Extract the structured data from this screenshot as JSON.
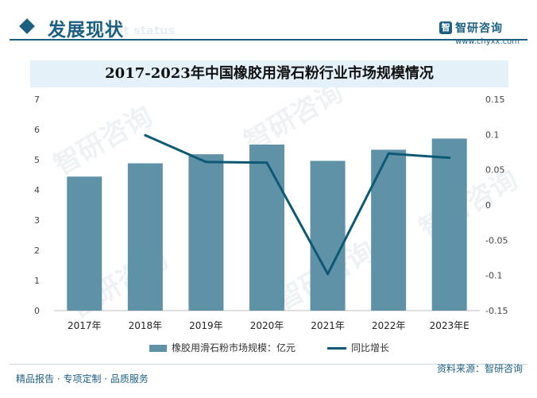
{
  "header": {
    "section_title": "发展现状",
    "section_subtitle": "ment status",
    "logo_mark": "智",
    "logo_name": "智研咨询",
    "logo_url": "www.chyxx.com"
  },
  "watermark_text": "智研咨询",
  "chart_data": {
    "type": "bar",
    "title": "2017-2023年中国橡胶用滑石粉行业市场规模情况",
    "categories": [
      "2017年",
      "2018年",
      "2019年",
      "2020年",
      "2021年",
      "2022年",
      "2023年E"
    ],
    "series": [
      {
        "name": "橡胶用滑石粉市场规模：亿元",
        "type": "bar",
        "axis": "left",
        "values": [
          4.44,
          4.88,
          5.18,
          5.5,
          4.96,
          5.33,
          5.7
        ]
      },
      {
        "name": "同比增长",
        "type": "line",
        "axis": "right",
        "values": [
          null,
          0.099,
          0.061,
          0.06,
          -0.098,
          0.073,
          0.067
        ]
      }
    ],
    "y_left": {
      "min": 0,
      "max": 7,
      "ticks": [
        "0",
        "1",
        "2",
        "3",
        "4",
        "5",
        "6",
        "7"
      ]
    },
    "y_right": {
      "min": -0.15,
      "max": 0.15,
      "ticks": [
        "-0.15",
        "-0.1",
        "-0.05",
        "0",
        "0.05",
        "0.1",
        "0.15"
      ]
    },
    "grid": false,
    "legend_position": "bottom",
    "colors": {
      "bar": "#5f91a7",
      "line": "#0d5975"
    }
  },
  "footer": {
    "left": "精品报告 · 专项定制 · 品质服务",
    "right": "资料来源：智研咨询"
  }
}
